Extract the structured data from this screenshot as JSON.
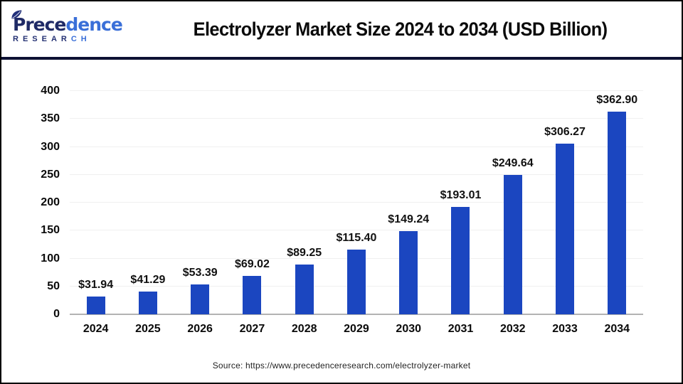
{
  "header": {
    "logo": {
      "word_dark": "Prece",
      "word_light": "dence",
      "sub_dark": "RESEAR",
      "sub_light": "CH"
    },
    "title": "Electrolyzer Market Size 2024 to 2034 (USD Billion)"
  },
  "chart_data": {
    "type": "bar",
    "title": "Electrolyzer Market Size 2024 to 2034 (USD Billion)",
    "categories": [
      "2024",
      "2025",
      "2026",
      "2027",
      "2028",
      "2029",
      "2030",
      "2031",
      "2032",
      "2033",
      "2034"
    ],
    "values": [
      31.94,
      41.29,
      53.39,
      69.02,
      89.25,
      115.4,
      149.24,
      193.01,
      249.64,
      306.27,
      362.9
    ],
    "value_labels": [
      "$31.94",
      "$41.29",
      "$53.39",
      "$69.02",
      "$89.25",
      "$115.40",
      "$149.24",
      "$193.01",
      "$249.64",
      "$306.27",
      "$362.90"
    ],
    "xlabel": "",
    "ylabel": "",
    "ylim": [
      0,
      400
    ],
    "yticks": [
      0,
      50,
      100,
      150,
      200,
      250,
      300,
      350,
      400
    ],
    "grid": true,
    "legend": "none",
    "bar_color": "#1B46C0"
  },
  "footer": {
    "source": "Source: https://www.precedenceresearch.com/electrolyzer-market"
  },
  "colors": {
    "bar": "#1B46C0",
    "divider": "#0D1133",
    "grid": "#F0F0F0",
    "baseline": "#B3B3B3",
    "logo_dark": "#1F2A66",
    "logo_light": "#3A6FD8"
  }
}
